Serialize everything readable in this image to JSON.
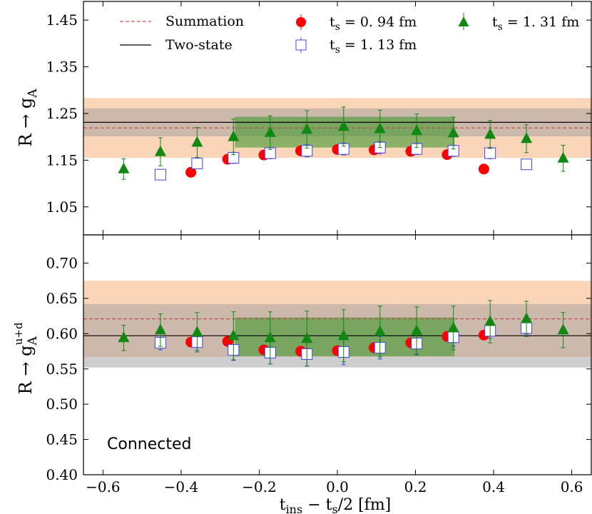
{
  "chart_data": [
    {
      "type": "scatter",
      "panel": "top",
      "ylabel": "R → g",
      "ylabel_sub": "A",
      "ylim": [
        0.99,
        1.49
      ],
      "yticks": [
        "1.05",
        "1.15",
        "1.25",
        "1.35",
        "1.45"
      ],
      "ytick_values": [
        1.05,
        1.15,
        1.25,
        1.35,
        1.45
      ],
      "bands": [
        {
          "kind": "summation",
          "color": "#f4a261",
          "opacity": 0.45,
          "center": 1.219,
          "lo": 1.155,
          "hi": 1.283
        },
        {
          "kind": "two-state",
          "color": "#9e9e9e",
          "opacity": 0.5,
          "center": 1.231,
          "lo": 1.201,
          "hi": 1.261
        },
        {
          "kind": "fit-window",
          "color": "#3f9a30",
          "opacity": 0.6,
          "x0": -0.262,
          "x1": 0.3,
          "lo": 1.177,
          "hi": 1.243
        }
      ],
      "series": [
        {
          "name": "t_s = 0.94 fm",
          "marker": "circle",
          "color": "#ff0000",
          "x": [
            -0.375,
            -0.281,
            -0.188,
            -0.094,
            0.0,
            0.094,
            0.188,
            0.281,
            0.375
          ],
          "y": [
            1.124,
            1.152,
            1.161,
            1.17,
            1.173,
            1.172,
            1.169,
            1.162,
            1.131
          ],
          "err": [
            0.004,
            0.006,
            0.006,
            0.007,
            0.007,
            0.007,
            0.006,
            0.006,
            0.004
          ]
        },
        {
          "name": "t_s = 1.13 fm",
          "marker": "square",
          "color": "#4444dd",
          "x": [
            -0.453,
            -0.359,
            -0.266,
            -0.172,
            -0.078,
            0.016,
            0.109,
            0.203,
            0.297,
            0.391,
            0.484
          ],
          "y": [
            1.119,
            1.143,
            1.155,
            1.165,
            1.17,
            1.174,
            1.177,
            1.174,
            1.17,
            1.165,
            1.141
          ],
          "err": [
            0.005,
            0.01,
            0.012,
            0.012,
            0.013,
            0.013,
            0.013,
            0.012,
            0.012,
            0.012,
            0.01
          ]
        },
        {
          "name": "t_s = 1.31 fm",
          "marker": "triangle",
          "color": "#118811",
          "x": [
            -0.547,
            -0.453,
            -0.359,
            -0.266,
            -0.172,
            -0.078,
            0.016,
            0.109,
            0.203,
            0.297,
            0.391,
            0.484,
            0.578
          ],
          "y": [
            1.131,
            1.168,
            1.188,
            1.2,
            1.209,
            1.216,
            1.222,
            1.217,
            1.213,
            1.208,
            1.205,
            1.196,
            1.154
          ],
          "err": [
            0.022,
            0.03,
            0.032,
            0.038,
            0.036,
            0.04,
            0.042,
            0.04,
            0.036,
            0.034,
            0.03,
            0.03,
            0.028
          ]
        }
      ],
      "lines": [
        {
          "name": "Summation",
          "style": "dashed",
          "color": "#c0504d",
          "y": 1.219
        },
        {
          "name": "Two-state",
          "style": "solid",
          "color": "#000000",
          "y": 1.231
        }
      ],
      "legend": "top"
    },
    {
      "type": "scatter",
      "panel": "bottom",
      "ylabel": "R → g",
      "ylabel_sub": "A",
      "ylabel_sup": "u+d",
      "xlabel_main": "t",
      "xlabel_sub1": "ins",
      "xlabel_mid": " − t",
      "xlabel_sub2": "s",
      "xlabel_tail": "/2 [fm]",
      "xlim": [
        -0.65,
        0.65
      ],
      "ylim": [
        0.4,
        0.74
      ],
      "xticks": [
        "−0.6",
        "−0.4",
        "−0.2",
        "0.0",
        "0.2",
        "0.4",
        "0.6"
      ],
      "xtick_values": [
        -0.6,
        -0.4,
        -0.2,
        0.0,
        0.2,
        0.4,
        0.6
      ],
      "yticks": [
        "0.40",
        "0.45",
        "0.50",
        "0.55",
        "0.60",
        "0.65",
        "0.70"
      ],
      "ytick_values": [
        0.4,
        0.45,
        0.5,
        0.55,
        0.6,
        0.65,
        0.7
      ],
      "annotation": "Connected",
      "bands": [
        {
          "kind": "summation",
          "color": "#f4a261",
          "opacity": 0.45,
          "center": 0.621,
          "lo": 0.567,
          "hi": 0.675
        },
        {
          "kind": "two-state",
          "color": "#9e9e9e",
          "opacity": 0.5,
          "center": 0.597,
          "lo": 0.552,
          "hi": 0.642
        },
        {
          "kind": "fit-window",
          "color": "#3f9a30",
          "opacity": 0.6,
          "x0": -0.262,
          "x1": 0.3,
          "lo": 0.568,
          "hi": 0.623
        }
      ],
      "series": [
        {
          "name": "t_s = 0.94 fm",
          "marker": "circle",
          "color": "#ff0000",
          "x": [
            -0.375,
            -0.281,
            -0.188,
            -0.094,
            0.0,
            0.094,
            0.188,
            0.281,
            0.375
          ],
          "y": [
            0.588,
            0.589,
            0.577,
            0.575,
            0.576,
            0.58,
            0.587,
            0.596,
            0.598
          ],
          "err": [
            0.004,
            0.004,
            0.005,
            0.005,
            0.005,
            0.005,
            0.004,
            0.004,
            0.004
          ]
        },
        {
          "name": "t_s = 1.13 fm",
          "marker": "square",
          "color": "#4444dd",
          "x": [
            -0.453,
            -0.359,
            -0.266,
            -0.172,
            -0.078,
            0.016,
            0.109,
            0.203,
            0.297,
            0.391,
            0.484
          ],
          "y": [
            0.587,
            0.588,
            0.577,
            0.573,
            0.571,
            0.574,
            0.58,
            0.586,
            0.595,
            0.604,
            0.608
          ],
          "err": [
            0.01,
            0.012,
            0.015,
            0.016,
            0.017,
            0.018,
            0.016,
            0.015,
            0.013,
            0.011,
            0.009
          ]
        },
        {
          "name": "t_s = 1.31 fm",
          "marker": "triangle",
          "color": "#118811",
          "x": [
            -0.547,
            -0.453,
            -0.359,
            -0.266,
            -0.172,
            -0.078,
            0.016,
            0.109,
            0.203,
            0.297,
            0.391,
            0.484,
            0.578
          ],
          "y": [
            0.594,
            0.605,
            0.602,
            0.597,
            0.594,
            0.593,
            0.597,
            0.603,
            0.604,
            0.608,
            0.617,
            0.621,
            0.605
          ],
          "err": [
            0.018,
            0.023,
            0.028,
            0.034,
            0.037,
            0.039,
            0.037,
            0.036,
            0.034,
            0.031,
            0.03,
            0.025,
            0.025
          ]
        }
      ],
      "lines": [
        {
          "name": "Summation",
          "style": "dashed",
          "color": "#c0504d",
          "y": 0.621
        },
        {
          "name": "Two-state",
          "style": "solid",
          "color": "#000000",
          "y": 0.597
        }
      ]
    }
  ],
  "legend": {
    "summation_label": "Summation",
    "twostate_label": "Two-state",
    "s1_pre": "t",
    "s1_sub": "s",
    "s1_post": " = 0. 94 fm",
    "s2_pre": "t",
    "s2_sub": "s",
    "s2_post": " = 1. 13 fm",
    "s3_pre": "t",
    "s3_sub": "s",
    "s3_post": " = 1. 31 fm"
  }
}
